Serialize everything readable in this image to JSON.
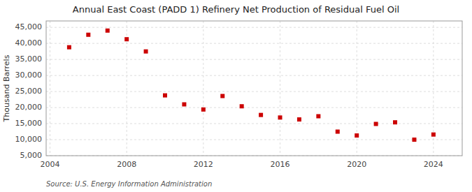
{
  "chart_data": {
    "type": "scatter",
    "title": "Annual East Coast (PADD 1) Refinery Net Production of Residual Fuel Oil",
    "ylabel": "Thousand Barrels",
    "source": "Source: U.S. Energy Information Administration",
    "x": [
      2005,
      2006,
      2007,
      2008,
      2009,
      2010,
      2011,
      2012,
      2013,
      2014,
      2015,
      2016,
      2017,
      2018,
      2019,
      2020,
      2021,
      2022,
      2023,
      2024
    ],
    "values": [
      38800,
      42700,
      44000,
      41300,
      37500,
      23800,
      21000,
      19400,
      23600,
      20400,
      17700,
      16900,
      16300,
      17300,
      12500,
      11300,
      14900,
      15400,
      10000,
      11600
    ],
    "color": "#cc0000",
    "marker": "square",
    "xlim": [
      2003.8,
      2025.5
    ],
    "xticks": [
      2004,
      2008,
      2012,
      2016,
      2020,
      2024
    ],
    "ylim": [
      5000,
      47000
    ],
    "yticks": [
      {
        "value": 5000,
        "label": "5,000"
      },
      {
        "value": 10000,
        "label": "10,000"
      },
      {
        "value": 15000,
        "label": "15,000"
      },
      {
        "value": 20000,
        "label": "20,000"
      },
      {
        "value": 25000,
        "label": "25,000"
      },
      {
        "value": 30000,
        "label": "30,000"
      },
      {
        "value": 35000,
        "label": "35,000"
      },
      {
        "value": 40000,
        "label": "40,000"
      },
      {
        "value": 45000,
        "label": "45,000"
      }
    ],
    "grid": true
  }
}
